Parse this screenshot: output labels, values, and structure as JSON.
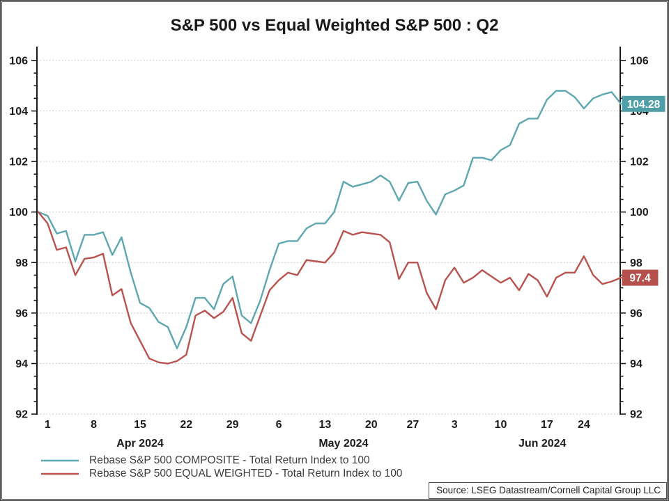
{
  "page": {
    "title": "S&P 500 vs Equal Weighted S&P 500 : Q2",
    "source": "Source: LSEG Datastream/Cornell Capital Group LLC"
  },
  "chart_data": {
    "type": "line",
    "title": "S&P 500 vs Equal Weighted S&P 500 : Q2",
    "xlabel": "",
    "ylabel": "",
    "ylim": [
      92,
      106
    ],
    "y_ticks": [
      92,
      94,
      96,
      98,
      100,
      102,
      104,
      106
    ],
    "y_minor_step": 0.5,
    "grid": "horizontal dotted at each major y tick, both axes labeled left and right",
    "legend_position": "bottom-left",
    "x_axis": {
      "tick_labels": [
        "1",
        "8",
        "15",
        "22",
        "29",
        "6",
        "13",
        "20",
        "27",
        "3",
        "10",
        "17",
        "24"
      ],
      "tick_day_index": [
        1,
        6,
        11,
        16,
        21,
        26,
        31,
        36,
        40.5,
        45,
        50,
        55,
        59
      ],
      "month_labels": [
        {
          "text": "Apr 2024",
          "day_index": 11
        },
        {
          "text": "May 2024",
          "day_index": 33
        },
        {
          "text": "Jun 2024",
          "day_index": 54.5
        }
      ]
    },
    "series": [
      {
        "name": "Rebase S&P 500 COMPOSITE - Total Return Index to 100",
        "color": "#5ea7b0",
        "end_label": "104.28",
        "end_label_color": "#4f9fa8",
        "values": [
          100,
          99.85,
          99.15,
          99.25,
          98.05,
          99.1,
          99.1,
          99.2,
          98.3,
          99.0,
          97.6,
          96.4,
          96.2,
          95.65,
          95.45,
          94.6,
          95.45,
          96.6,
          96.6,
          96.15,
          97.15,
          97.45,
          95.9,
          95.6,
          96.5,
          97.7,
          98.75,
          98.85,
          98.85,
          99.35,
          99.55,
          99.55,
          100.0,
          101.2,
          101.0,
          101.1,
          101.2,
          101.45,
          101.2,
          100.45,
          101.15,
          101.2,
          100.45,
          99.9,
          100.7,
          100.85,
          101.05,
          102.15,
          102.15,
          102.05,
          102.45,
          102.65,
          103.5,
          103.7,
          103.7,
          104.45,
          104.8,
          104.8,
          104.55,
          104.1,
          104.5,
          104.65,
          104.75,
          104.28
        ]
      },
      {
        "name": "Rebase S&P 500 EQUAL WEIGHTED - Total Return Index to 100",
        "color": "#b9534f",
        "end_label": "97.4",
        "end_label_color": "#b5504d",
        "values": [
          100,
          99.55,
          98.5,
          98.6,
          97.5,
          98.15,
          98.2,
          98.35,
          96.7,
          96.95,
          95.6,
          94.9,
          94.2,
          94.05,
          94.0,
          94.1,
          94.35,
          95.9,
          96.1,
          95.8,
          96.05,
          96.6,
          95.2,
          94.9,
          95.9,
          96.9,
          97.3,
          97.6,
          97.5,
          98.1,
          98.05,
          98.0,
          98.4,
          99.25,
          99.1,
          99.2,
          99.15,
          99.1,
          98.8,
          97.35,
          98.0,
          98.0,
          96.8,
          96.15,
          97.3,
          97.8,
          97.2,
          97.4,
          97.7,
          97.45,
          97.2,
          97.4,
          96.9,
          97.55,
          97.3,
          96.65,
          97.4,
          97.6,
          97.6,
          98.25,
          97.5,
          97.15,
          97.25,
          97.4
        ]
      }
    ]
  }
}
